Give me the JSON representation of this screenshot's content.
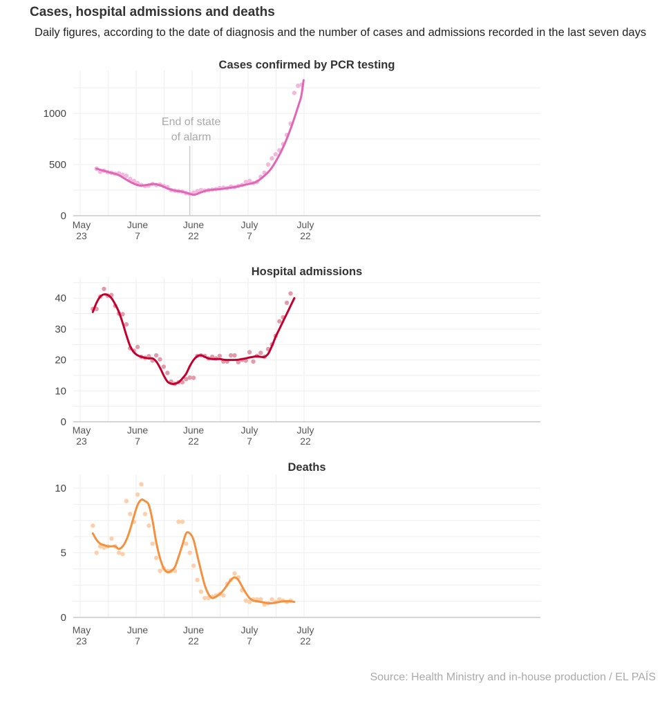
{
  "header": {
    "title": "Cases, hospital admissions and deaths",
    "subtitle": "Daily figures, according to the date of diagnosis and the number of cases and admissions recorded in the last seven days"
  },
  "source": "Source: Health Ministry and in-house production / EL PAÍS",
  "chart_data": [
    {
      "type": "line",
      "title": "Cases confirmed by PCR testing",
      "color": "#e066b8",
      "dot_color": "#f2b8dd",
      "x_ticks": [
        {
          "day": 0,
          "line1": "May",
          "line2": "23"
        },
        {
          "day": 15,
          "line1": "June",
          "line2": "7"
        },
        {
          "day": 30,
          "line1": "June",
          "line2": "22"
        },
        {
          "day": 45,
          "line1": "July",
          "line2": "7"
        },
        {
          "day": 60,
          "line1": "July",
          "line2": "22"
        }
      ],
      "x_range_days": [
        0,
        60
      ],
      "y_ticks": [
        0,
        500,
        1000
      ],
      "y_grid": [
        0,
        250,
        500,
        750,
        1000,
        1250
      ],
      "ylim": [
        0,
        1330
      ],
      "annotation": {
        "day": 29,
        "lines": [
          "End of state",
          "of alarm"
        ]
      },
      "trend": [
        [
          3,
          460
        ],
        [
          6,
          440
        ],
        [
          9,
          420
        ],
        [
          12,
          400
        ],
        [
          15,
          360
        ],
        [
          18,
          320
        ],
        [
          21,
          295
        ],
        [
          24,
          300
        ],
        [
          27,
          310
        ],
        [
          30,
          295
        ],
        [
          33,
          265
        ],
        [
          36,
          245
        ],
        [
          39,
          235
        ],
        [
          42,
          215
        ],
        [
          44,
          205
        ],
        [
          46,
          220
        ],
        [
          49,
          245
        ],
        [
          52,
          255
        ],
        [
          55,
          260
        ],
        [
          58,
          270
        ],
        [
          61,
          280
        ],
        [
          64,
          295
        ],
        [
          67,
          310
        ],
        [
          70,
          330
        ],
        [
          73,
          380
        ],
        [
          76,
          450
        ],
        [
          79,
          560
        ],
        [
          82,
          700
        ],
        [
          85,
          880
        ],
        [
          88,
          1090
        ],
        [
          89,
          1170
        ],
        [
          90,
          1325
        ]
      ],
      "points": [
        [
          3,
          460
        ],
        [
          4,
          430
        ],
        [
          5,
          440
        ],
        [
          6,
          425
        ],
        [
          7,
          420
        ],
        [
          8,
          410
        ],
        [
          9,
          415
        ],
        [
          10,
          400
        ],
        [
          11,
          390
        ],
        [
          12,
          360
        ],
        [
          13,
          340
        ],
        [
          14,
          320
        ],
        [
          15,
          300
        ],
        [
          16,
          290
        ],
        [
          17,
          295
        ],
        [
          18,
          310
        ],
        [
          19,
          300
        ],
        [
          20,
          305
        ],
        [
          21,
          290
        ],
        [
          22,
          280
        ],
        [
          23,
          250
        ],
        [
          24,
          245
        ],
        [
          25,
          240
        ],
        [
          26,
          235
        ],
        [
          27,
          220
        ],
        [
          28,
          215
        ],
        [
          29,
          225
        ],
        [
          30,
          240
        ],
        [
          31,
          250
        ],
        [
          32,
          245
        ],
        [
          33,
          250
        ],
        [
          34,
          255
        ],
        [
          35,
          260
        ],
        [
          36,
          270
        ],
        [
          37,
          275
        ],
        [
          38,
          270
        ],
        [
          39,
          285
        ],
        [
          40,
          280
        ],
        [
          41,
          290
        ],
        [
          42,
          300
        ],
        [
          43,
          330
        ],
        [
          44,
          340
        ],
        [
          45,
          320
        ],
        [
          46,
          330
        ],
        [
          47,
          380
        ],
        [
          48,
          420
        ],
        [
          49,
          500
        ],
        [
          50,
          560
        ],
        [
          51,
          600
        ],
        [
          52,
          640
        ],
        [
          53,
          700
        ],
        [
          54,
          790
        ],
        [
          55,
          900
        ],
        [
          56,
          1200
        ],
        [
          57,
          1270
        ],
        [
          58,
          1280
        ]
      ]
    },
    {
      "type": "line",
      "title": "Hospital admissions",
      "color": "#c2002f",
      "dot_color": "#e39aab",
      "x_ticks": [
        {
          "day": 0,
          "line1": "May",
          "line2": "23"
        },
        {
          "day": 15,
          "line1": "June",
          "line2": "7"
        },
        {
          "day": 30,
          "line1": "June",
          "line2": "22"
        },
        {
          "day": 45,
          "line1": "July",
          "line2": "7"
        },
        {
          "day": 60,
          "line1": "July",
          "line2": "22"
        }
      ],
      "x_range_days": [
        0,
        60
      ],
      "y_ticks": [
        0,
        10,
        20,
        30,
        40
      ],
      "y_grid": [
        0,
        5,
        10,
        15,
        20,
        25,
        30,
        35,
        40,
        45
      ],
      "ylim": [
        0,
        45
      ],
      "trend": [
        [
          2,
          35.5
        ],
        [
          3,
          38.5
        ],
        [
          4,
          40.5
        ],
        [
          5,
          41.2
        ],
        [
          6,
          41
        ],
        [
          7,
          40
        ],
        [
          8,
          38
        ],
        [
          9,
          35.5
        ],
        [
          10,
          32
        ],
        [
          11,
          28
        ],
        [
          12,
          24.5
        ],
        [
          13,
          22.5
        ],
        [
          14,
          21.5
        ],
        [
          15,
          21
        ],
        [
          16,
          20.7
        ],
        [
          17,
          20.5
        ],
        [
          18,
          20.5
        ],
        [
          19,
          19.5
        ],
        [
          20,
          17.5
        ],
        [
          21,
          15
        ],
        [
          22,
          13
        ],
        [
          23,
          12.3
        ],
        [
          24,
          12.3
        ],
        [
          25,
          12.8
        ],
        [
          26,
          14
        ],
        [
          27,
          15.5
        ],
        [
          28,
          18
        ],
        [
          29,
          20
        ],
        [
          30,
          21.2
        ],
        [
          31,
          21.5
        ],
        [
          32,
          21
        ],
        [
          33,
          20.5
        ],
        [
          34,
          20.3
        ],
        [
          35,
          20.3
        ],
        [
          36,
          20.3
        ],
        [
          37,
          20.1
        ],
        [
          38,
          20
        ],
        [
          39,
          20
        ],
        [
          40,
          20
        ],
        [
          41,
          20.1
        ],
        [
          42,
          20.3
        ],
        [
          43,
          20.5
        ],
        [
          44,
          20.8
        ],
        [
          45,
          21
        ],
        [
          46,
          21.2
        ],
        [
          47,
          21
        ],
        [
          48,
          21
        ],
        [
          49,
          22
        ],
        [
          50,
          24.5
        ],
        [
          51,
          27.5
        ],
        [
          52,
          30
        ],
        [
          53,
          32.5
        ],
        [
          54,
          35
        ],
        [
          55,
          37.5
        ],
        [
          56,
          40
        ]
      ],
      "points": [
        [
          2,
          36.5
        ],
        [
          3,
          36.5
        ],
        [
          4,
          40.5
        ],
        [
          5,
          43
        ],
        [
          6,
          40.8
        ],
        [
          7,
          41
        ],
        [
          8,
          37.5
        ],
        [
          9,
          35
        ],
        [
          10,
          34.8
        ],
        [
          11,
          31.5
        ],
        [
          12,
          23.8
        ],
        [
          13,
          23
        ],
        [
          14,
          24.2
        ],
        [
          15,
          21
        ],
        [
          16,
          20.7
        ],
        [
          17,
          21.2
        ],
        [
          18,
          19.8
        ],
        [
          19,
          21.5
        ],
        [
          20,
          20.2
        ],
        [
          21,
          17.8
        ],
        [
          22,
          15.8
        ],
        [
          23,
          13
        ],
        [
          24,
          12.3
        ],
        [
          25,
          12.8
        ],
        [
          26,
          12.8
        ],
        [
          27,
          13.8
        ],
        [
          28,
          14.3
        ],
        [
          29,
          14.2
        ],
        [
          30,
          21.3
        ],
        [
          31,
          21.5
        ],
        [
          32,
          21.3
        ],
        [
          33,
          20.5
        ],
        [
          34,
          21
        ],
        [
          35,
          20.5
        ],
        [
          36,
          21.3
        ],
        [
          37,
          19.5
        ],
        [
          38,
          19.5
        ],
        [
          39,
          21.5
        ],
        [
          40,
          21.5
        ],
        [
          41,
          19.3
        ],
        [
          42,
          20
        ],
        [
          43,
          19.8
        ],
        [
          44,
          22.5
        ],
        [
          45,
          19.5
        ],
        [
          46,
          21.3
        ],
        [
          47,
          22.3
        ],
        [
          48,
          21
        ],
        [
          49,
          23.5
        ],
        [
          50,
          25
        ],
        [
          51,
          27.8
        ],
        [
          52,
          32.5
        ],
        [
          53,
          33.8
        ],
        [
          54,
          38.5
        ],
        [
          55,
          41.5
        ]
      ]
    },
    {
      "type": "line",
      "title": "Deaths",
      "color": "#f5913e",
      "dot_color": "#fdd0ab",
      "x_ticks": [
        {
          "day": 0,
          "line1": "May",
          "line2": "23"
        },
        {
          "day": 15,
          "line1": "June",
          "line2": "7"
        },
        {
          "day": 30,
          "line1": "June",
          "line2": "22"
        },
        {
          "day": 45,
          "line1": "July",
          "line2": "7"
        },
        {
          "day": 60,
          "line1": "July",
          "line2": "22"
        }
      ],
      "x_range_days": [
        0,
        60
      ],
      "y_ticks": [
        0,
        5,
        10
      ],
      "y_grid": [
        0,
        1.25,
        2.5,
        3.75,
        5,
        6.25,
        7.5,
        8.75,
        10
      ],
      "ylim": [
        0,
        10
      ],
      "trend": [
        [
          2,
          6.5
        ],
        [
          3,
          6
        ],
        [
          4,
          5.7
        ],
        [
          5,
          5.6
        ],
        [
          6,
          5.5
        ],
        [
          7,
          5.5
        ],
        [
          8,
          5.5
        ],
        [
          9,
          5.3
        ],
        [
          10,
          5.5
        ],
        [
          11,
          6
        ],
        [
          12,
          6.8
        ],
        [
          13,
          7.8
        ],
        [
          14,
          8.7
        ],
        [
          15,
          9.1
        ],
        [
          16,
          9
        ],
        [
          17,
          8.7
        ],
        [
          18,
          7.5
        ],
        [
          19,
          5.8
        ],
        [
          20,
          4.6
        ],
        [
          21,
          3.8
        ],
        [
          22,
          3.5
        ],
        [
          23,
          3.6
        ],
        [
          24,
          3.9
        ],
        [
          25,
          4.7
        ],
        [
          26,
          5.6
        ],
        [
          27,
          6.5
        ],
        [
          28,
          6.5
        ],
        [
          29,
          6
        ],
        [
          30,
          4.8
        ],
        [
          31,
          3.6
        ],
        [
          32,
          2.5
        ],
        [
          33,
          1.8
        ],
        [
          34,
          1.5
        ],
        [
          35,
          1.6
        ],
        [
          36,
          1.8
        ],
        [
          37,
          2.1
        ],
        [
          38,
          2.5
        ],
        [
          39,
          2.9
        ],
        [
          40,
          3.1
        ],
        [
          41,
          2.9
        ],
        [
          42,
          2.4
        ],
        [
          43,
          1.9
        ],
        [
          44,
          1.5
        ],
        [
          45,
          1.3
        ],
        [
          46,
          1.25
        ],
        [
          47,
          1.2
        ],
        [
          48,
          1.15
        ],
        [
          49,
          1.1
        ],
        [
          50,
          1.1
        ],
        [
          51,
          1.15
        ],
        [
          52,
          1.2
        ],
        [
          53,
          1.25
        ],
        [
          54,
          1.25
        ],
        [
          55,
          1.25
        ],
        [
          56,
          1.2
        ]
      ],
      "points": [
        [
          2,
          7.1
        ],
        [
          3,
          5
        ],
        [
          4,
          5.5
        ],
        [
          5,
          5.4
        ],
        [
          6,
          5.5
        ],
        [
          7,
          6.1
        ],
        [
          8,
          5.5
        ],
        [
          9,
          5
        ],
        [
          10,
          4.9
        ],
        [
          11,
          9
        ],
        [
          12,
          8
        ],
        [
          13,
          7.4
        ],
        [
          14,
          9.5
        ],
        [
          15,
          10.3
        ],
        [
          16,
          8
        ],
        [
          17,
          7.1
        ],
        [
          18,
          5.7
        ],
        [
          19,
          4.6
        ],
        [
          20,
          3.6
        ],
        [
          21,
          3.8
        ],
        [
          22,
          3.6
        ],
        [
          23,
          3.6
        ],
        [
          24,
          3.6
        ],
        [
          25,
          7.4
        ],
        [
          26,
          7.4
        ],
        [
          27,
          5.7
        ],
        [
          28,
          5
        ],
        [
          29,
          4
        ],
        [
          30,
          2.9
        ],
        [
          31,
          2
        ],
        [
          32,
          1.5
        ],
        [
          33,
          1.5
        ],
        [
          34,
          1.6
        ],
        [
          35,
          1.7
        ],
        [
          36,
          1.8
        ],
        [
          37,
          1.7
        ],
        [
          38,
          2.6
        ],
        [
          39,
          2.9
        ],
        [
          40,
          3.4
        ],
        [
          41,
          3.1
        ],
        [
          42,
          2.1
        ],
        [
          43,
          1.3
        ],
        [
          44,
          1.2
        ],
        [
          45,
          1.4
        ],
        [
          46,
          1.4
        ],
        [
          47,
          1.4
        ],
        [
          48,
          1
        ],
        [
          49,
          1.1
        ],
        [
          50,
          1.4
        ],
        [
          51,
          1.2
        ],
        [
          52,
          1.4
        ],
        [
          53,
          1.3
        ],
        [
          54,
          1.2
        ],
        [
          55,
          1.3
        ]
      ]
    }
  ]
}
